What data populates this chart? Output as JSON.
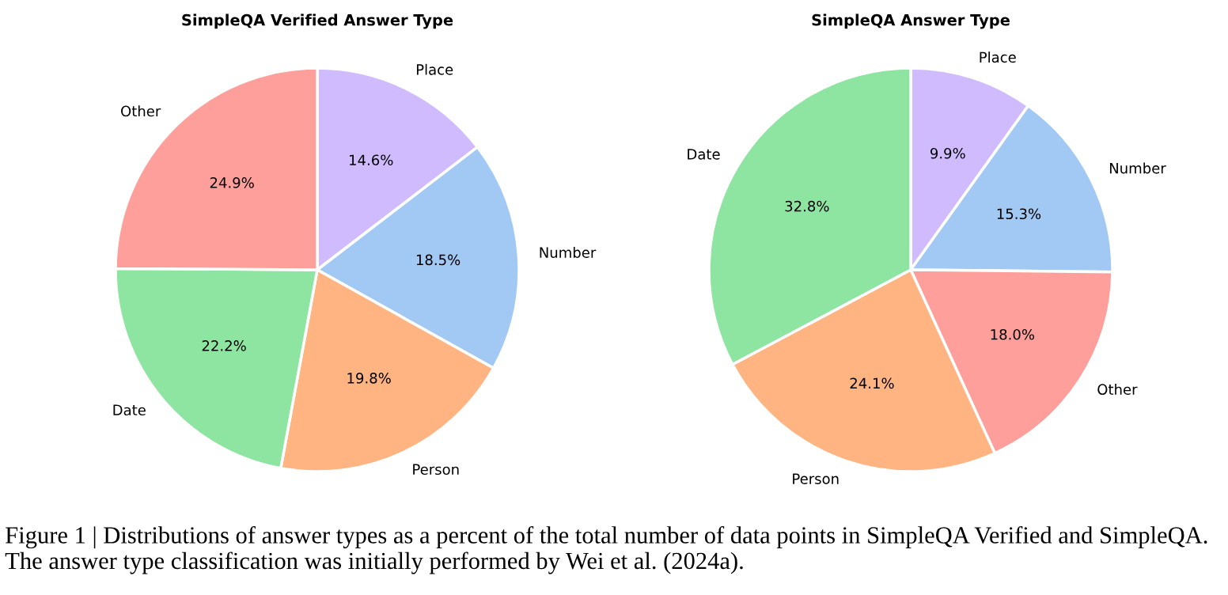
{
  "chart_data": [
    {
      "type": "pie",
      "title": "SimpleQA Verified Answer Type",
      "categories": [
        "Place",
        "Number",
        "Person",
        "Date",
        "Other"
      ],
      "values": [
        14.6,
        18.5,
        19.8,
        22.2,
        24.9
      ],
      "colors": [
        "#d0bbff",
        "#a1c9f4",
        "#ffb482",
        "#8de5a1",
        "#ff9f9b"
      ],
      "value_labels": [
        "14.6%",
        "18.5%",
        "19.8%",
        "22.2%",
        "24.9%"
      ],
      "annotations": [
        "Figure 1 | Distributions of answer types as a percent of the total number of data points in SimpleQA Verified and SimpleQA. The answer type classification was initially performed by Wei et al. (2024a)."
      ]
    },
    {
      "type": "pie",
      "title": "SimpleQA Answer Type",
      "categories": [
        "Place",
        "Number",
        "Other",
        "Person",
        "Date"
      ],
      "values": [
        9.9,
        15.3,
        18.0,
        24.1,
        32.8
      ],
      "colors": [
        "#d0bbff",
        "#a1c9f4",
        "#ff9f9b",
        "#ffb482",
        "#8de5a1"
      ],
      "value_labels": [
        "9.9%",
        "15.3%",
        "18.0%",
        "24.1%",
        "32.8%"
      ]
    }
  ]
}
